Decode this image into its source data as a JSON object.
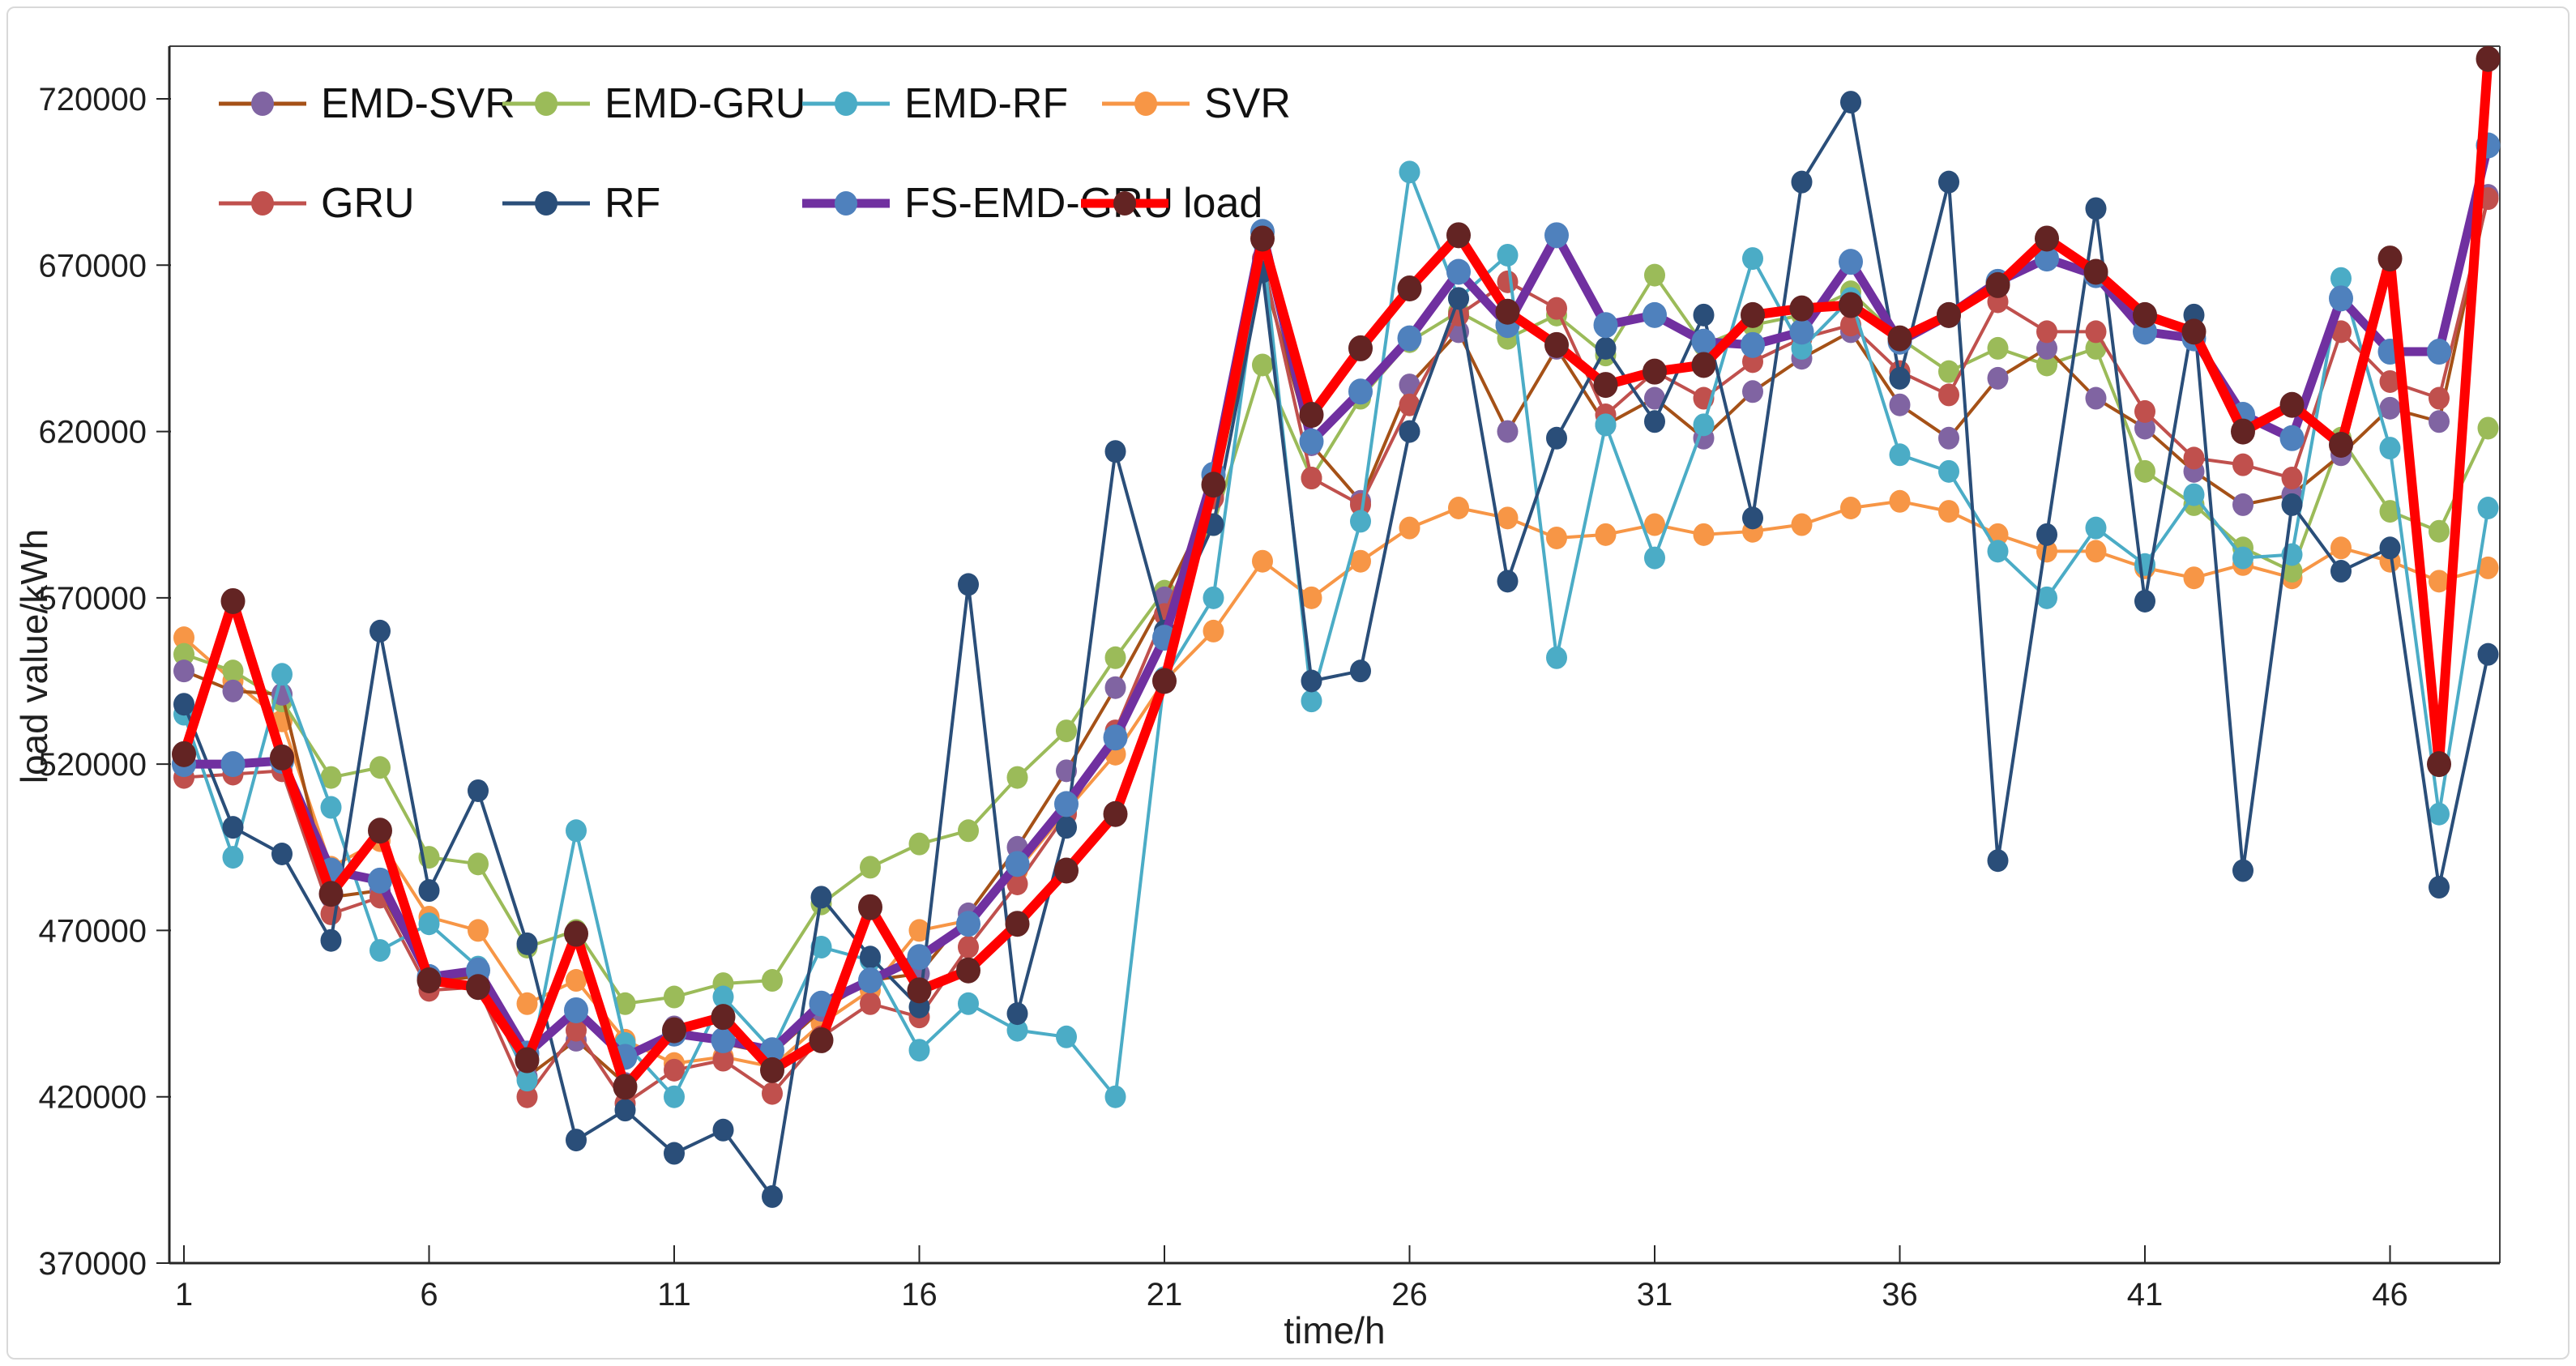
{
  "frame": {
    "background": "#ffffff",
    "border_color": "#d9d9d9"
  },
  "chart_data": {
    "type": "line",
    "title": "",
    "xlabel": "time/h",
    "ylabel": "load value/kWh",
    "xlim": [
      1,
      48
    ],
    "ylim": [
      370000,
      720000
    ],
    "y_tick_step": 50000,
    "y_tick_labels": [
      "370000",
      "420000",
      "470000",
      "520000",
      "570000",
      "620000",
      "670000",
      "720000"
    ],
    "x_tick_labels": [
      "1",
      "6",
      "11",
      "16",
      "21",
      "26",
      "31",
      "36",
      "41",
      "46"
    ],
    "x_ticks": [
      1,
      6,
      11,
      16,
      21,
      26,
      31,
      36,
      41,
      46
    ],
    "grid": false,
    "legend_position": "top-left inside plot, two rows",
    "x_hours": [
      1,
      2,
      3,
      4,
      5,
      6,
      7,
      8,
      9,
      10,
      11,
      12,
      13,
      14,
      15,
      16,
      17,
      18,
      19,
      20,
      21,
      22,
      23,
      24,
      25,
      26,
      27,
      28,
      29,
      30,
      31,
      32,
      33,
      34,
      35,
      36,
      37,
      38,
      39,
      40,
      41,
      42,
      43,
      44,
      45,
      46,
      47,
      48
    ],
    "series": [
      {
        "name": "SVR",
        "line_color": "#F79646",
        "marker_color": "#F79646",
        "line_width": 4,
        "marker_rx": 13,
        "marker_ry": 14,
        "values": [
          558000,
          545000,
          533000,
          489000,
          497000,
          474000,
          470000,
          448000,
          455000,
          437000,
          430000,
          432000,
          429000,
          442000,
          452000,
          470000,
          473000,
          488000,
          506000,
          523000,
          545000,
          560000,
          581000,
          570000,
          581000,
          591000,
          597000,
          594000,
          588000,
          589000,
          592000,
          589000,
          590000,
          592000,
          597000,
          599000,
          596000,
          589000,
          584000,
          584000,
          579000,
          576000,
          580000,
          576000,
          585000,
          581000,
          575000,
          579000
        ]
      },
      {
        "name": "EMD-GRU",
        "line_color": "#9BBB59",
        "marker_color": "#9BBB59",
        "line_width": 4,
        "marker_rx": 13,
        "marker_ry": 14,
        "values": [
          553000,
          548000,
          539000,
          516000,
          519000,
          492000,
          490000,
          465000,
          470000,
          448000,
          450000,
          454000,
          455000,
          478000,
          489000,
          496000,
          500000,
          516000,
          530000,
          552000,
          572000,
          592000,
          640000,
          606000,
          630000,
          647000,
          656000,
          648000,
          655000,
          643000,
          667000,
          646000,
          652000,
          655000,
          662000,
          648000,
          638000,
          645000,
          640000,
          645000,
          608000,
          598000,
          585000,
          578000,
          618000,
          596000,
          590000,
          621000
        ]
      },
      {
        "name": "EMD-SVR",
        "line_color": "#A55117",
        "marker_color": "#8064A2",
        "line_width": 4,
        "marker_rx": 13,
        "marker_ry": 14,
        "values": [
          548000,
          542000,
          541000,
          480000,
          482000,
          455000,
          456000,
          426000,
          437000,
          424000,
          441000,
          436000,
          433000,
          446000,
          455000,
          457000,
          475000,
          495000,
          518000,
          543000,
          570000,
          600000,
          668000,
          616000,
          599000,
          634000,
          650000,
          620000,
          645000,
          622000,
          630000,
          618000,
          632000,
          642000,
          650000,
          628000,
          618000,
          636000,
          645000,
          630000,
          621000,
          608000,
          598000,
          601000,
          613000,
          627000,
          623000,
          691000
        ]
      },
      {
        "name": "GRU",
        "line_color": "#C0504D",
        "marker_color": "#C0504D",
        "line_width": 4,
        "marker_rx": 13,
        "marker_ry": 14,
        "values": [
          516000,
          517000,
          518000,
          475000,
          480000,
          452000,
          453000,
          420000,
          440000,
          418000,
          428000,
          431000,
          421000,
          438000,
          448000,
          444000,
          465000,
          484000,
          505000,
          530000,
          565000,
          600000,
          672000,
          606000,
          598000,
          628000,
          655000,
          665000,
          657000,
          625000,
          638000,
          630000,
          641000,
          648000,
          652000,
          638000,
          631000,
          659000,
          650000,
          650000,
          626000,
          612000,
          610000,
          606000,
          650000,
          635000,
          630000,
          690000
        ]
      },
      {
        "name": "EMD-RF",
        "line_color": "#4BACC6",
        "marker_color": "#4BACC6",
        "line_width": 4,
        "marker_rx": 13,
        "marker_ry": 14,
        "values": [
          535000,
          492000,
          547000,
          507000,
          464000,
          472000,
          459000,
          425000,
          500000,
          436000,
          420000,
          450000,
          434000,
          465000,
          461000,
          434000,
          448000,
          440000,
          438000,
          420000,
          546000,
          570000,
          677000,
          539000,
          593000,
          698000,
          660000,
          673000,
          552000,
          622000,
          582000,
          622000,
          672000,
          645000,
          660000,
          613000,
          608000,
          584000,
          570000,
          591000,
          580000,
          601000,
          582000,
          583000,
          666000,
          615000,
          505000,
          597000
        ]
      },
      {
        "name": "RF",
        "line_color": "#2A4E79",
        "marker_color": "#2A4E79",
        "line_width": 4,
        "marker_rx": 13,
        "marker_ry": 14,
        "values": [
          538000,
          501000,
          493000,
          467000,
          560000,
          482000,
          512000,
          466000,
          407000,
          416000,
          403000,
          410000,
          390000,
          480000,
          462000,
          447000,
          574000,
          445000,
          501000,
          614000,
          560000,
          592000,
          668000,
          545000,
          548000,
          620000,
          660000,
          575000,
          618000,
          645000,
          623000,
          655000,
          594000,
          695000,
          719000,
          636000,
          695000,
          491000,
          589000,
          687000,
          569000,
          655000,
          488000,
          598000,
          578000,
          585000,
          483000,
          553000
        ]
      },
      {
        "name": "FS-EMD-GRU",
        "line_color": "#7030A0",
        "marker_color": "#4F81BD",
        "line_width": 11,
        "marker_rx": 15,
        "marker_ry": 16,
        "values": [
          520000,
          520000,
          521000,
          488000,
          485000,
          456000,
          458000,
          433000,
          446000,
          432000,
          439000,
          437000,
          434000,
          448000,
          455000,
          462000,
          472000,
          490000,
          508000,
          528000,
          558000,
          607000,
          680000,
          617000,
          632000,
          648000,
          668000,
          652000,
          679000,
          652000,
          655000,
          647000,
          646000,
          650000,
          671000,
          647000,
          655000,
          665000,
          672000,
          667000,
          650000,
          648000,
          625000,
          618000,
          660000,
          644000,
          644000,
          706000
        ]
      },
      {
        "name": "load",
        "line_color": "#FF0000",
        "marker_color": "#632423",
        "line_width": 12,
        "marker_rx": 15,
        "marker_ry": 16,
        "values": [
          523000,
          569000,
          522000,
          481000,
          500000,
          455000,
          453000,
          431000,
          469000,
          423000,
          440000,
          444000,
          428000,
          437000,
          477000,
          452000,
          458000,
          472000,
          488000,
          505000,
          545000,
          604000,
          678000,
          625000,
          645000,
          663000,
          679000,
          656000,
          646000,
          634000,
          638000,
          640000,
          655000,
          657000,
          658000,
          648000,
          655000,
          664000,
          678000,
          668000,
          655000,
          650000,
          620000,
          628000,
          616000,
          672000,
          520000,
          732000
        ]
      }
    ],
    "legend_order": [
      "EMD-SVR",
      "EMD-GRU",
      "EMD-RF",
      "SVR",
      "GRU",
      "RF",
      "FS-EMD-GRU",
      "load"
    ]
  }
}
